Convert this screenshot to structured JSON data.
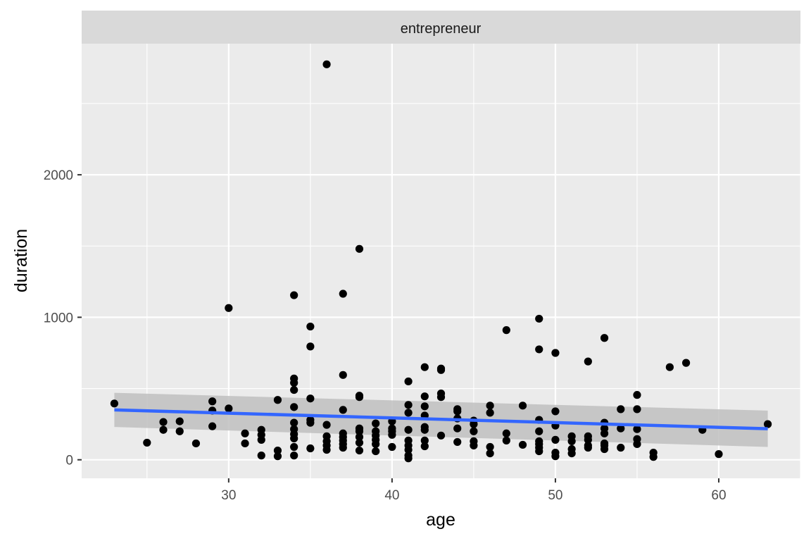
{
  "chart_data": {
    "type": "scatter",
    "facet_label": "entrepreneur",
    "xlabel": "age",
    "ylabel": "duration",
    "xlim": [
      21.0,
      65.0
    ],
    "ylim": [
      -130,
      2920
    ],
    "x_ticks": [
      30,
      40,
      50,
      60
    ],
    "y_ticks": [
      0,
      1000,
      2000
    ],
    "x_tick_labels": [
      "30",
      "40",
      "50",
      "60"
    ],
    "y_tick_labels": [
      "0",
      "1000",
      "2000"
    ],
    "grid": true,
    "colors": {
      "panel_bg": "#ebebeb",
      "strip_bg": "#d9d9d9",
      "grid": "#ffffff",
      "point": "#000000",
      "smooth_line": "#3366ff",
      "ci_band": "#bfbfbf"
    },
    "smooth": {
      "method": "lm",
      "x": [
        23,
        63
      ],
      "y": [
        350,
        218
      ],
      "ci_lower": [
        230,
        90
      ],
      "ci_upper": [
        470,
        345
      ]
    },
    "points": [
      [
        23,
        395
      ],
      [
        25,
        120
      ],
      [
        26,
        265
      ],
      [
        26,
        210
      ],
      [
        27,
        270
      ],
      [
        27,
        200
      ],
      [
        28,
        115
      ],
      [
        29,
        410
      ],
      [
        29,
        345
      ],
      [
        29,
        235
      ],
      [
        30,
        1065
      ],
      [
        30,
        360
      ],
      [
        31,
        185
      ],
      [
        31,
        115
      ],
      [
        32,
        210
      ],
      [
        32,
        175
      ],
      [
        32,
        140
      ],
      [
        32,
        30
      ],
      [
        33,
        420
      ],
      [
        33,
        65
      ],
      [
        33,
        25
      ],
      [
        34,
        1155
      ],
      [
        34,
        570
      ],
      [
        34,
        540
      ],
      [
        34,
        490
      ],
      [
        34,
        370
      ],
      [
        34,
        260
      ],
      [
        34,
        215
      ],
      [
        34,
        180
      ],
      [
        34,
        150
      ],
      [
        34,
        90
      ],
      [
        34,
        30
      ],
      [
        35,
        935
      ],
      [
        35,
        795
      ],
      [
        35,
        430
      ],
      [
        35,
        280
      ],
      [
        35,
        260
      ],
      [
        35,
        80
      ],
      [
        36,
        2775
      ],
      [
        36,
        245
      ],
      [
        36,
        165
      ],
      [
        36,
        130
      ],
      [
        36,
        100
      ],
      [
        36,
        70
      ],
      [
        37,
        1165
      ],
      [
        37,
        595
      ],
      [
        37,
        350
      ],
      [
        37,
        185
      ],
      [
        37,
        160
      ],
      [
        37,
        135
      ],
      [
        37,
        110
      ],
      [
        37,
        85
      ],
      [
        38,
        1480
      ],
      [
        38,
        450
      ],
      [
        38,
        440
      ],
      [
        38,
        220
      ],
      [
        38,
        200
      ],
      [
        38,
        160
      ],
      [
        38,
        120
      ],
      [
        38,
        65
      ],
      [
        39,
        255
      ],
      [
        39,
        200
      ],
      [
        39,
        170
      ],
      [
        39,
        140
      ],
      [
        39,
        110
      ],
      [
        39,
        60
      ],
      [
        40,
        270
      ],
      [
        40,
        220
      ],
      [
        40,
        200
      ],
      [
        40,
        175
      ],
      [
        40,
        90
      ],
      [
        41,
        550
      ],
      [
        41,
        385
      ],
      [
        41,
        330
      ],
      [
        41,
        210
      ],
      [
        41,
        135
      ],
      [
        41,
        100
      ],
      [
        41,
        70
      ],
      [
        41,
        30
      ],
      [
        41,
        10
      ],
      [
        42,
        650
      ],
      [
        42,
        445
      ],
      [
        42,
        375
      ],
      [
        42,
        310
      ],
      [
        42,
        230
      ],
      [
        42,
        210
      ],
      [
        42,
        135
      ],
      [
        42,
        95
      ],
      [
        43,
        640
      ],
      [
        43,
        630
      ],
      [
        43,
        465
      ],
      [
        43,
        440
      ],
      [
        43,
        170
      ],
      [
        44,
        355
      ],
      [
        44,
        340
      ],
      [
        44,
        290
      ],
      [
        44,
        220
      ],
      [
        44,
        125
      ],
      [
        45,
        275
      ],
      [
        45,
        250
      ],
      [
        45,
        200
      ],
      [
        45,
        130
      ],
      [
        45,
        100
      ],
      [
        46,
        380
      ],
      [
        46,
        330
      ],
      [
        46,
        90
      ],
      [
        46,
        45
      ],
      [
        47,
        910
      ],
      [
        47,
        185
      ],
      [
        47,
        135
      ],
      [
        48,
        380
      ],
      [
        48,
        105
      ],
      [
        49,
        990
      ],
      [
        49,
        775
      ],
      [
        49,
        280
      ],
      [
        49,
        200
      ],
      [
        49,
        130
      ],
      [
        49,
        110
      ],
      [
        49,
        85
      ],
      [
        49,
        60
      ],
      [
        50,
        750
      ],
      [
        50,
        340
      ],
      [
        50,
        240
      ],
      [
        50,
        140
      ],
      [
        50,
        50
      ],
      [
        50,
        25
      ],
      [
        51,
        165
      ],
      [
        51,
        130
      ],
      [
        51,
        75
      ],
      [
        51,
        45
      ],
      [
        52,
        690
      ],
      [
        52,
        165
      ],
      [
        52,
        140
      ],
      [
        52,
        100
      ],
      [
        52,
        85
      ],
      [
        53,
        855
      ],
      [
        53,
        260
      ],
      [
        53,
        220
      ],
      [
        53,
        185
      ],
      [
        53,
        115
      ],
      [
        53,
        100
      ],
      [
        53,
        75
      ],
      [
        54,
        355
      ],
      [
        54,
        220
      ],
      [
        54,
        85
      ],
      [
        55,
        455
      ],
      [
        55,
        355
      ],
      [
        55,
        215
      ],
      [
        55,
        145
      ],
      [
        55,
        110
      ],
      [
        56,
        50
      ],
      [
        56,
        20
      ],
      [
        57,
        650
      ],
      [
        58,
        680
      ],
      [
        59,
        210
      ],
      [
        60,
        40
      ],
      [
        63,
        250
      ]
    ]
  }
}
